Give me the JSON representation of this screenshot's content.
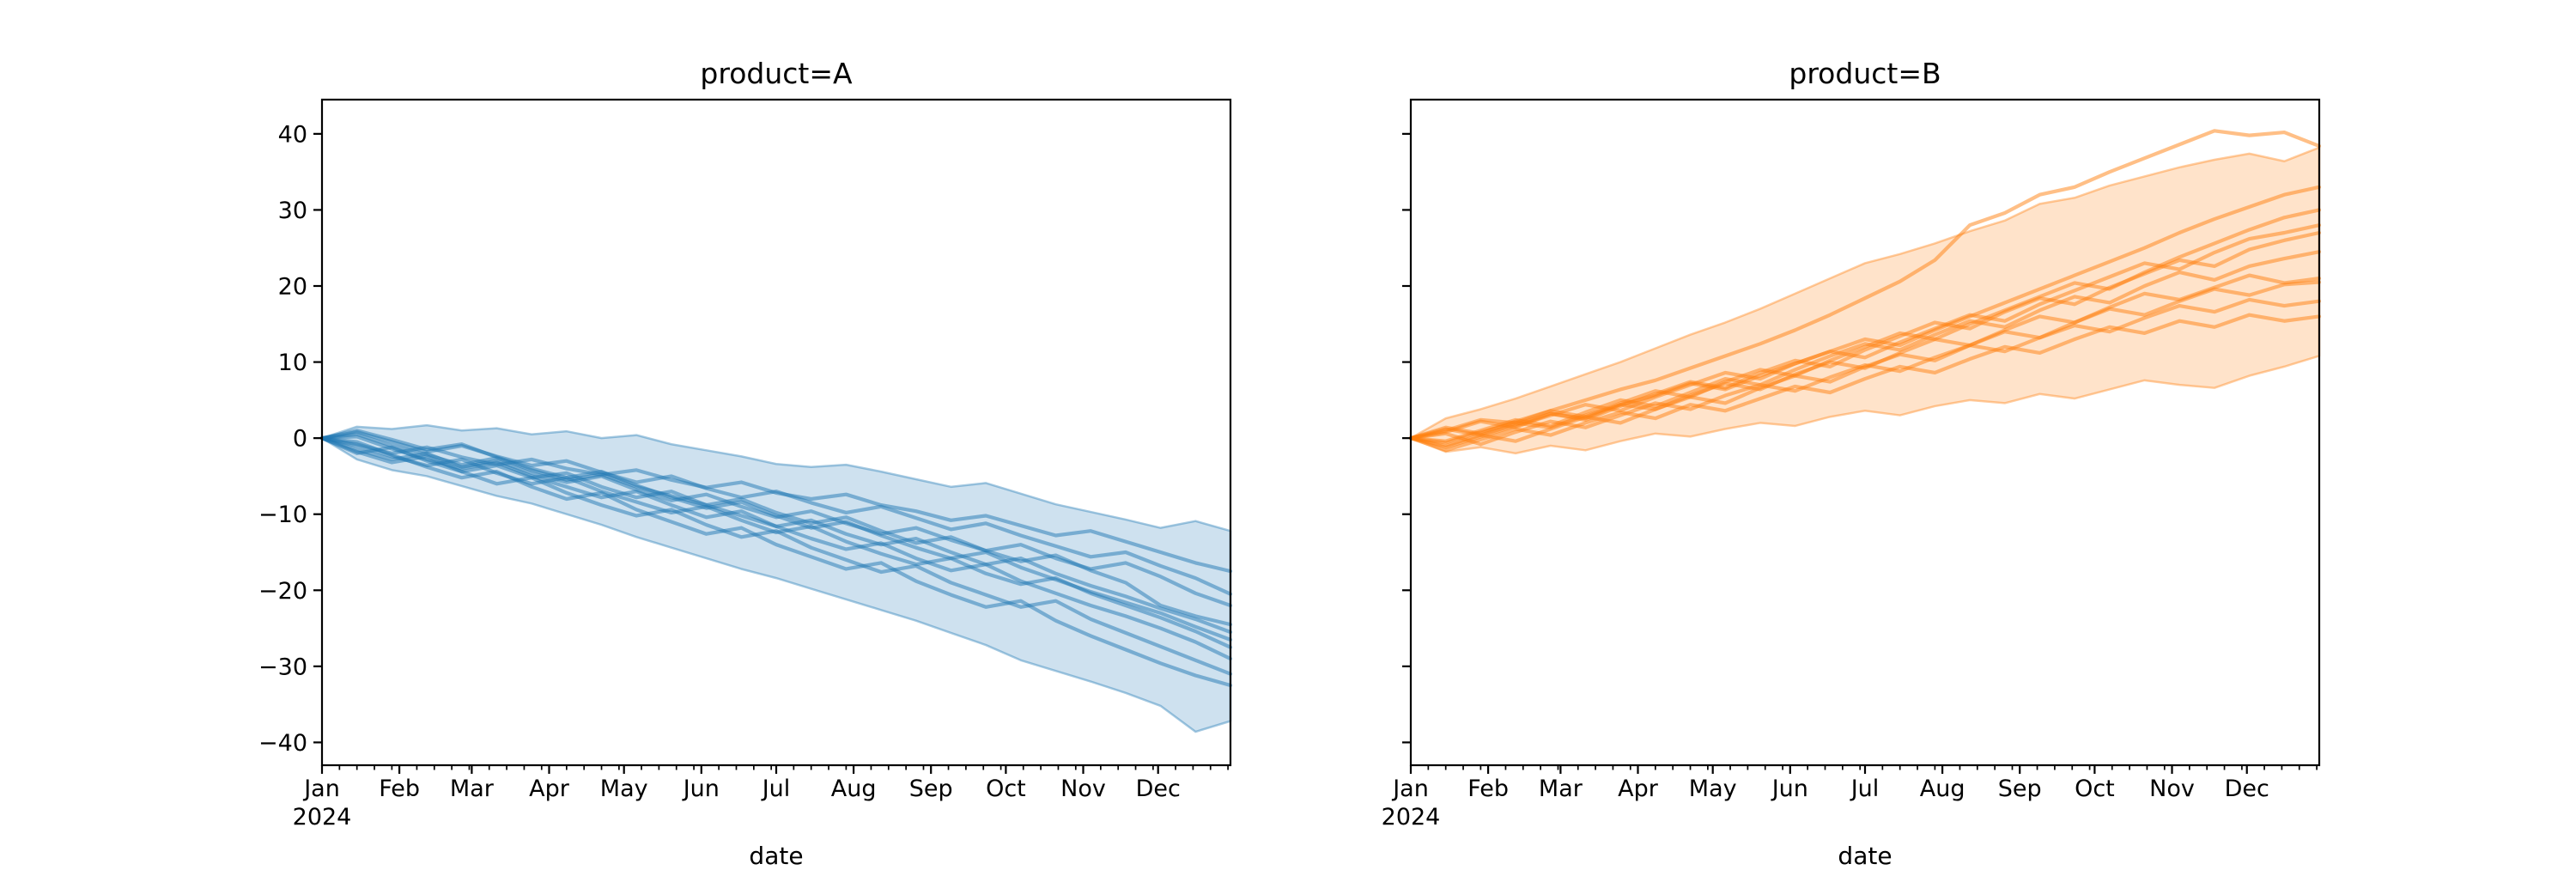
{
  "figure": {
    "background": "#ffffff",
    "year_label": "2024"
  },
  "chart_data": [
    {
      "type": "line",
      "title": "product=A",
      "xlabel": "date",
      "color": "#1f77b4",
      "ylim": [
        -43,
        44.5
      ],
      "xlim_days": [
        0,
        364
      ],
      "x_first_tick_year": "2024",
      "show_y_tick_labels": true,
      "y_ticks": [
        40,
        30,
        20,
        10,
        0,
        -10,
        -20,
        -30,
        -40
      ],
      "y_tick_labels": [
        "40",
        "30",
        "20",
        "10",
        "0",
        "−10",
        "−20",
        "−30",
        "−40"
      ],
      "months": [
        {
          "label": "Jan",
          "day": 0
        },
        {
          "label": "Feb",
          "day": 31
        },
        {
          "label": "Mar",
          "day": 60
        },
        {
          "label": "Apr",
          "day": 91
        },
        {
          "label": "May",
          "day": 121
        },
        {
          "label": "Jun",
          "day": 152
        },
        {
          "label": "Jul",
          "day": 182
        },
        {
          "label": "Aug",
          "day": 213
        },
        {
          "label": "Sep",
          "day": 244
        },
        {
          "label": "Oct",
          "day": 274
        },
        {
          "label": "Nov",
          "day": 305
        },
        {
          "label": "Dec",
          "day": 335
        }
      ],
      "x_weeks_step": 2,
      "band": {
        "top": [
          0,
          1.5,
          1.2,
          1.7,
          1,
          1.3,
          0.5,
          0.9,
          0,
          0.4,
          -0.8,
          -1.6,
          -2.4,
          -3.4,
          -3.8,
          -3.5,
          -4.4,
          -5.4,
          -6.4,
          -5.9,
          -7.3,
          -8.7,
          -9.7,
          -10.7,
          -11.8,
          -10.9,
          -12.2
        ],
        "bottom": [
          0,
          -2.8,
          -4.2,
          -5,
          -6.3,
          -7.6,
          -8.6,
          -10,
          -11.4,
          -13,
          -14.4,
          -15.8,
          -17.2,
          -18.4,
          -19.8,
          -21.2,
          -22.6,
          -24,
          -25.6,
          -27.2,
          -29.2,
          -30.6,
          -32,
          -33.5,
          -35.2,
          -38.6,
          -37.2
        ]
      },
      "series": [
        [
          0,
          -0.8,
          -2,
          -1.2,
          -2.5,
          -3.5,
          -2.8,
          -4,
          -4.8,
          -4.2,
          -5.5,
          -6.5,
          -5.8,
          -7.2,
          -8,
          -7.4,
          -8.8,
          -9.6,
          -10.8,
          -10.2,
          -11.5,
          -12.8,
          -12.2,
          -13.6,
          -15,
          -16.4,
          -17.5
        ],
        [
          0,
          0.8,
          -0.5,
          -1.8,
          -1,
          -2.4,
          -3.6,
          -3,
          -4.5,
          -5.8,
          -5,
          -6.6,
          -7.8,
          -7,
          -8.5,
          -9.8,
          -9,
          -10.5,
          -12,
          -11.2,
          -12.8,
          -14.2,
          -15.6,
          -15,
          -16.8,
          -18.4,
          -20.5
        ],
        [
          0,
          -1.5,
          -2.8,
          -2,
          -3.8,
          -3,
          -4.6,
          -5.8,
          -5,
          -6.8,
          -8.2,
          -7.4,
          -9,
          -10.4,
          -9.6,
          -11.2,
          -12.6,
          -11.8,
          -13.4,
          -14.8,
          -14,
          -15.8,
          -17.2,
          -16.4,
          -18.2,
          -20.4,
          -22
        ],
        [
          0,
          0.5,
          -1,
          -2.2,
          -3.5,
          -2.6,
          -4.2,
          -5.5,
          -4.8,
          -6.4,
          -7.6,
          -8.8,
          -8,
          -9.8,
          -11.2,
          -10.4,
          -12.2,
          -13.8,
          -13,
          -14.8,
          -16.2,
          -15.4,
          -17.4,
          -19,
          -22,
          -23.4,
          -24.5
        ],
        [
          0,
          -2,
          -1.2,
          -3,
          -4.4,
          -3.6,
          -5.2,
          -4.6,
          -6.4,
          -7.8,
          -7,
          -8.8,
          -10.2,
          -11.6,
          -10.8,
          -12.6,
          -14,
          -13.2,
          -15,
          -16.6,
          -15.8,
          -17.8,
          -19.4,
          -20.8,
          -22.4,
          -23.8,
          -25.5
        ],
        [
          0,
          1,
          -0.2,
          -1.5,
          -0.8,
          -2.5,
          -4,
          -5.2,
          -4.4,
          -6.2,
          -7.8,
          -9.2,
          -8.4,
          -10.2,
          -11.8,
          -11,
          -12.8,
          -14.4,
          -15.8,
          -15,
          -17,
          -18.6,
          -20.2,
          -21.6,
          -23,
          -24.8,
          -26.5
        ],
        [
          0,
          -1,
          -2.4,
          -3.6,
          -2.8,
          -4.6,
          -6,
          -5.2,
          -7,
          -8.4,
          -9.8,
          -9,
          -10.8,
          -12.4,
          -11.6,
          -13.6,
          -15.2,
          -16.6,
          -15.8,
          -17.8,
          -19.2,
          -18.4,
          -20.4,
          -22,
          -23.6,
          -25.4,
          -27.5
        ],
        [
          0,
          0.2,
          -1.4,
          -2.8,
          -4,
          -3.2,
          -5,
          -6.4,
          -7.8,
          -7,
          -8.8,
          -10.4,
          -9.6,
          -11.6,
          -13.2,
          -14.6,
          -13.8,
          -15.8,
          -17.4,
          -16.6,
          -18.8,
          -20.4,
          -22,
          -23.4,
          -25,
          -26.8,
          -29
        ],
        [
          0,
          -1.8,
          -3.2,
          -2.4,
          -4.4,
          -6,
          -5.2,
          -7.2,
          -8.8,
          -10.2,
          -9.4,
          -11.4,
          -13,
          -12.2,
          -14.4,
          -16,
          -17.6,
          -16.8,
          -19,
          -20.6,
          -22.2,
          -21.4,
          -23.8,
          -25.6,
          -27.4,
          -29.2,
          -31
        ],
        [
          0,
          -0.5,
          -2.2,
          -3.8,
          -5.2,
          -4.4,
          -6.4,
          -8,
          -7.2,
          -9.4,
          -11,
          -12.6,
          -11.8,
          -14,
          -15.6,
          -17.2,
          -16.4,
          -18.8,
          -20.6,
          -22.2,
          -21.4,
          -24,
          -26,
          -27.8,
          -29.6,
          -31.2,
          -32.5
        ]
      ]
    },
    {
      "type": "line",
      "title": "product=B",
      "xlabel": "date",
      "color": "#ff7f0e",
      "ylim": [
        -43,
        44.5
      ],
      "xlim_days": [
        0,
        364
      ],
      "x_first_tick_year": "2024",
      "show_y_tick_labels": false,
      "y_ticks": [
        40,
        30,
        20,
        10,
        0,
        -10,
        -20,
        -30,
        -40
      ],
      "y_tick_labels": [
        "40",
        "30",
        "20",
        "10",
        "0",
        "−10",
        "−20",
        "−30",
        "−40"
      ],
      "months": [
        {
          "label": "Jan",
          "day": 0
        },
        {
          "label": "Feb",
          "day": 31
        },
        {
          "label": "Mar",
          "day": 60
        },
        {
          "label": "Apr",
          "day": 91
        },
        {
          "label": "May",
          "day": 121
        },
        {
          "label": "Jun",
          "day": 152
        },
        {
          "label": "Jul",
          "day": 182
        },
        {
          "label": "Aug",
          "day": 213
        },
        {
          "label": "Sep",
          "day": 244
        },
        {
          "label": "Oct",
          "day": 274
        },
        {
          "label": "Nov",
          "day": 305
        },
        {
          "label": "Dec",
          "day": 335
        }
      ],
      "x_weeks_step": 2,
      "band": {
        "top": [
          0,
          2.6,
          3.8,
          5.2,
          6.8,
          8.4,
          10,
          11.8,
          13.6,
          15.2,
          17,
          19,
          21,
          23,
          24.2,
          25.6,
          27.2,
          28.6,
          30.8,
          31.6,
          33.2,
          34.4,
          35.6,
          36.6,
          37.4,
          36.4,
          38.2
        ],
        "bottom": [
          0,
          -1.8,
          -1.2,
          -2,
          -1,
          -1.6,
          -0.4,
          0.6,
          0.2,
          1.2,
          2,
          1.6,
          2.8,
          3.6,
          3,
          4.2,
          5,
          4.6,
          5.8,
          5.2,
          6.4,
          7.6,
          7,
          6.6,
          8.2,
          9.4,
          10.8
        ]
      },
      "series": [
        [
          0,
          1,
          2.4,
          2,
          3.6,
          5,
          6.4,
          7.6,
          9.2,
          10.8,
          12.4,
          14.2,
          16.2,
          18.4,
          20.6,
          23.4,
          28,
          29.6,
          32,
          33,
          35,
          36.8,
          38.6,
          40.4,
          39.8,
          40.2,
          38.4
        ],
        [
          0,
          -0.6,
          0.8,
          2,
          1.4,
          3,
          4.4,
          5.6,
          7.2,
          6.4,
          8.2,
          9.8,
          11.4,
          13,
          12.2,
          14.2,
          16,
          17.8,
          19.6,
          21.4,
          23.2,
          25,
          27,
          28.8,
          30.4,
          32,
          33
        ],
        [
          0,
          1.4,
          0.6,
          2.2,
          3.6,
          2.8,
          4.6,
          6.2,
          5.4,
          7.4,
          9,
          8.2,
          10.2,
          12,
          13.8,
          13,
          15,
          16.8,
          18.6,
          20.4,
          19.6,
          21.8,
          23.8,
          25.6,
          27.4,
          29,
          30
        ],
        [
          0,
          -1.2,
          0.2,
          1.6,
          3,
          4.4,
          3.6,
          5.4,
          7,
          8.6,
          7.8,
          9.8,
          11.4,
          10.6,
          12.6,
          14.4,
          16.2,
          15.4,
          17.6,
          19.4,
          21.2,
          23,
          22.2,
          24.4,
          26.2,
          27,
          28
        ],
        [
          0,
          0.8,
          2.2,
          1.4,
          3.2,
          2.4,
          4.2,
          5.8,
          7.4,
          6.6,
          8.6,
          10.2,
          9.4,
          11.6,
          13.4,
          15.2,
          14.4,
          16.6,
          18.4,
          17.6,
          19.8,
          21.6,
          23.4,
          22.6,
          24.8,
          26,
          27
        ],
        [
          0,
          -0.4,
          1,
          2.4,
          1.6,
          3.4,
          5,
          4.2,
          6,
          7.8,
          7,
          9,
          10.8,
          12.4,
          11.6,
          13.6,
          15.4,
          14.6,
          16.8,
          18.6,
          17.8,
          20,
          21.8,
          20.8,
          22.6,
          23.6,
          24.5
        ],
        [
          0,
          1.2,
          0.4,
          1.8,
          3.2,
          2.6,
          4.4,
          3.8,
          5.6,
          7.2,
          6.4,
          8.4,
          10,
          9.2,
          11.2,
          13,
          12.2,
          14.2,
          16,
          15.2,
          17.2,
          19,
          18.2,
          19.8,
          21.4,
          20.4,
          21
        ],
        [
          0,
          -1,
          0.4,
          -0.4,
          1.2,
          2.8,
          2,
          3.8,
          5.4,
          4.6,
          6.6,
          8.2,
          7.4,
          9.4,
          11,
          10.2,
          12.2,
          14,
          13.2,
          15.2,
          17,
          16.2,
          18,
          19.6,
          18.8,
          20.2,
          20.5
        ],
        [
          0,
          0.6,
          -0.8,
          0.8,
          2.2,
          1.4,
          3,
          4.6,
          3.8,
          5.6,
          7,
          6.2,
          8,
          9.6,
          8.8,
          10.6,
          12.2,
          11.4,
          13.2,
          14.8,
          14,
          15.8,
          17.4,
          16.6,
          18.2,
          17.4,
          18
        ],
        [
          0,
          -1.6,
          -0.2,
          1.2,
          0.4,
          2,
          3.4,
          2.6,
          4.4,
          3.6,
          5.2,
          6.8,
          6,
          7.8,
          9.4,
          8.6,
          10.4,
          12,
          11.2,
          13,
          14.6,
          13.8,
          15.4,
          14.6,
          16.2,
          15.4,
          16
        ]
      ]
    }
  ]
}
